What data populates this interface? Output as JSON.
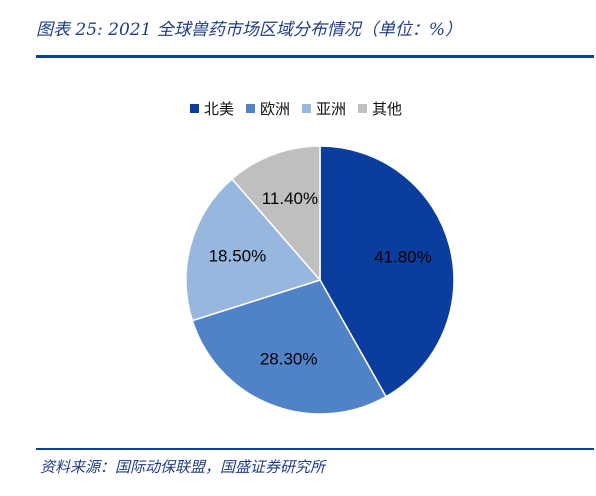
{
  "figure_title": "图表 25: 2021 全球兽药市场区域分布情况（单位：%）",
  "source": "资料来源：国际动保联盟，国盛证券研究所",
  "colors": {
    "rule": "#0b3fa0",
    "title": "#1f3c88"
  },
  "chart_data": {
    "type": "pie",
    "title": "",
    "legend_position": "top",
    "slices": [
      {
        "label": "北美",
        "value": 41.8,
        "display": "41.80%",
        "color": "#0a3d9e"
      },
      {
        "label": "欧洲",
        "value": 28.3,
        "display": "28.30%",
        "color": "#4f82c7"
      },
      {
        "label": "亚洲",
        "value": 18.5,
        "display": "18.50%",
        "color": "#97b7df"
      },
      {
        "label": "其他",
        "value": 11.4,
        "display": "11.40%",
        "color": "#bfbfbf"
      }
    ]
  }
}
